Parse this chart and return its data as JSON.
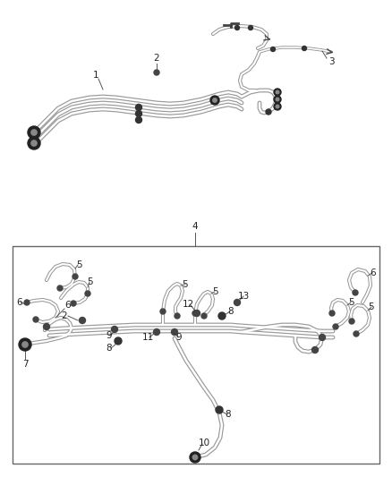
{
  "bg_color": "#ffffff",
  "line_color": "#888888",
  "dark_color": "#444444",
  "text_color": "#333333",
  "border_color": "#777777",
  "figsize": [
    4.38,
    5.33
  ],
  "dpi": 100,
  "tube_color": "#aaaaaa",
  "tube_outer_lw": 3.5,
  "tube_inner_lw": 1.8,
  "clip_size": 0.008
}
